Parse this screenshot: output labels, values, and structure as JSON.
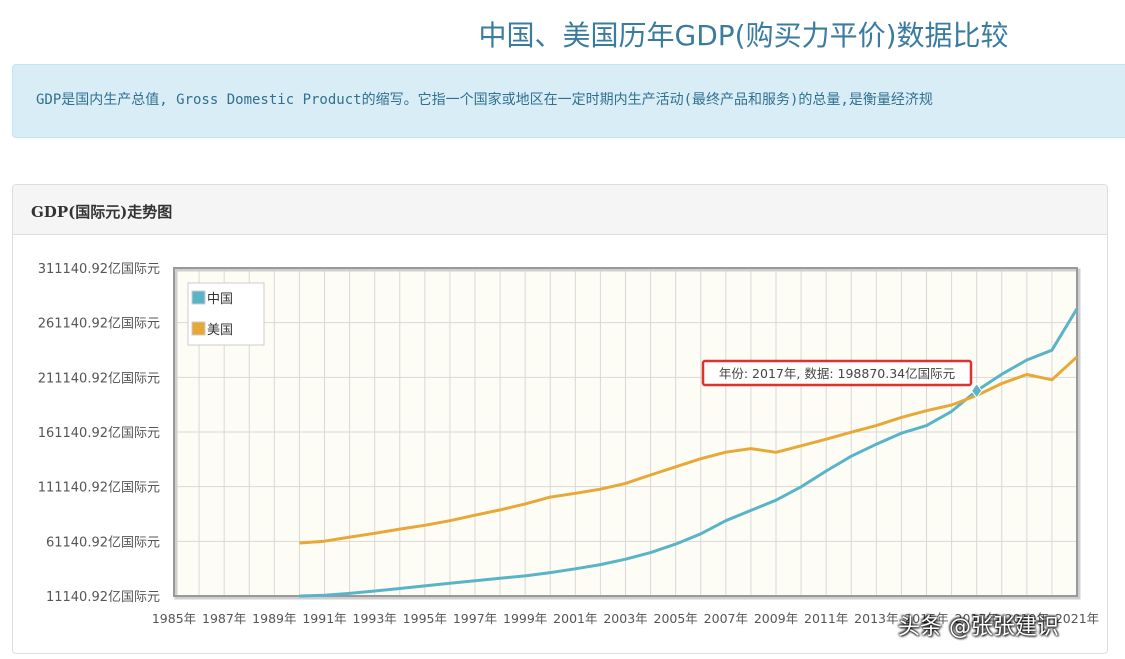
{
  "page": {
    "title": "中国、美国历年GDP(购买力平价)数据比较",
    "info": "GDP是国内生产总值, Gross Domestic Product的缩写。它指一个国家或地区在一定时期内生产活动(最终产品和服务)的总量,是衡量经济规"
  },
  "panel": {
    "title": "GDP(国际元)走势图"
  },
  "watermark": "头条 @张张建识",
  "colors": {
    "china": "#5ab4c8",
    "usa": "#e8a838",
    "plot_bg": "#fefdf5",
    "tooltip_border": "#e03030"
  },
  "chart_data": {
    "type": "line",
    "x": [
      1985,
      1986,
      1987,
      1988,
      1989,
      1990,
      1991,
      1992,
      1993,
      1994,
      1995,
      1996,
      1997,
      1998,
      1999,
      2000,
      2001,
      2002,
      2003,
      2004,
      2005,
      2006,
      2007,
      2008,
      2009,
      2010,
      2011,
      2012,
      2013,
      2014,
      2015,
      2016,
      2017,
      2018,
      2019,
      2020,
      2021
    ],
    "x_tick_labels": [
      "1985年",
      "1987年",
      "1989年",
      "1991年",
      "1993年",
      "1995年",
      "1997年",
      "1999年",
      "2001年",
      "2003年",
      "2005年",
      "2007年",
      "2009年",
      "2011年",
      "2013年",
      "2015年",
      "2017年",
      "2019年",
      "2021年"
    ],
    "y_tick_labels": [
      "11140.92亿国际元",
      "61140.92亿国际元",
      "111140.92亿国际元",
      "161140.92亿国际元",
      "211140.92亿国际元",
      "261140.92亿国际元",
      "311140.92亿国际元"
    ],
    "ylim": [
      11140.92,
      311140.92
    ],
    "xlim": [
      1985,
      2021
    ],
    "grid": true,
    "legend_position": "top-left",
    "series": [
      {
        "name": "中国",
        "values": [
          null,
          null,
          null,
          null,
          null,
          11140.92,
          11800,
          13500,
          15700,
          18000,
          20400,
          22800,
          25100,
          27400,
          29500,
          32500,
          36000,
          39900,
          44800,
          50800,
          58600,
          68000,
          80000,
          89400,
          98800,
          111000,
          125500,
          139000,
          150000,
          160000,
          167000,
          180000,
          198870.34,
          214000,
          227000,
          236000,
          274000
        ]
      },
      {
        "name": "美国",
        "values": [
          null,
          null,
          null,
          null,
          null,
          59600,
          61300,
          65000,
          68500,
          72300,
          75800,
          80000,
          85000,
          89900,
          95400,
          101600,
          105100,
          108800,
          114100,
          121800,
          129300,
          136700,
          142700,
          146000,
          142600,
          148500,
          154600,
          161000,
          167000,
          174500,
          180600,
          185800,
          194500,
          205500,
          213700,
          208900,
          229900
        ]
      }
    ],
    "tooltip": {
      "text": "年份: 2017年, 数据: 198870.34亿国际元",
      "x": 2017
    }
  }
}
